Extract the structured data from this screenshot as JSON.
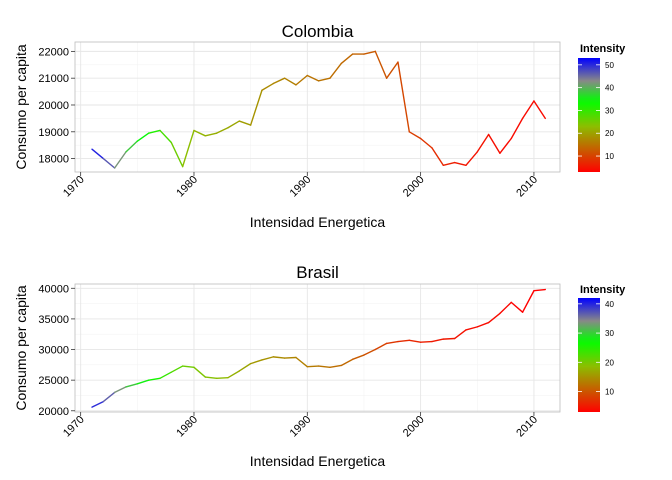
{
  "colors": {
    "panel_border": "#bdbdbd",
    "grid_major": "#e6e6e6",
    "grid_minor": "#f3f3f3",
    "gradient_high": "#0000ff",
    "gradient_mid_high": "#888888",
    "gradient_mid": "#00ff00",
    "gradient_low": "#ff0000"
  },
  "chart_data": [
    {
      "type": "line",
      "title": "Colombia",
      "xlabel": "Intensidad Energetica",
      "ylabel": "Consumo per capita",
      "xlim": [
        1969.5,
        2012.3
      ],
      "ylim": [
        17500,
        22350
      ],
      "xticks": [
        1970,
        1980,
        1990,
        2000,
        2010
      ],
      "yticks": [
        18000,
        19000,
        20000,
        21000,
        22000
      ],
      "x": [
        1971,
        1972,
        1973,
        1974,
        1975,
        1976,
        1977,
        1978,
        1979,
        1980,
        1981,
        1982,
        1983,
        1984,
        1985,
        1986,
        1987,
        1988,
        1989,
        1990,
        1991,
        1992,
        1993,
        1994,
        1995,
        1996,
        1997,
        1998,
        1999,
        2000,
        2001,
        2002,
        2003,
        2004,
        2005,
        2006,
        2007,
        2008,
        2009,
        2010,
        2011
      ],
      "y": [
        18350,
        18000,
        17650,
        18250,
        18650,
        18950,
        19050,
        18600,
        17700,
        19050,
        18850,
        18950,
        19150,
        19400,
        19250,
        20550,
        20800,
        21000,
        20750,
        21100,
        20900,
        21000,
        21550,
        21900,
        21900,
        22000,
        21000,
        21600,
        19000,
        18750,
        18400,
        17750,
        17850,
        17750,
        18250,
        18900,
        18200,
        18750,
        19500,
        20150,
        19500
      ],
      "color_values": [
        52,
        49,
        44,
        40,
        36,
        33,
        30,
        27,
        24,
        22,
        22,
        21,
        21,
        20,
        19,
        18,
        17,
        17,
        16,
        15,
        15,
        15,
        14,
        14,
        13,
        12,
        12,
        11,
        10,
        9,
        8,
        7,
        6,
        5,
        5,
        5,
        4,
        4,
        4,
        4,
        4
      ],
      "legend": {
        "title": "Intensity",
        "ticks": [
          10,
          20,
          30,
          40,
          50
        ],
        "range": [
          3,
          53
        ],
        "position": "right"
      },
      "grid": true
    },
    {
      "type": "line",
      "title": "Brasil",
      "xlabel": "Intensidad Energetica",
      "ylabel": "Consumo per capita",
      "xlim": [
        1969.5,
        2012.3
      ],
      "ylim": [
        19800,
        40700
      ],
      "xticks": [
        1970,
        1980,
        1990,
        2000,
        2010
      ],
      "yticks": [
        20000,
        25000,
        30000,
        35000,
        40000
      ],
      "x": [
        1971,
        1972,
        1973,
        1974,
        1975,
        1976,
        1977,
        1978,
        1979,
        1980,
        1981,
        1982,
        1983,
        1984,
        1985,
        1986,
        1987,
        1988,
        1989,
        1990,
        1991,
        1992,
        1993,
        1994,
        1995,
        1996,
        1997,
        1998,
        1999,
        2000,
        2001,
        2002,
        2003,
        2004,
        2005,
        2006,
        2007,
        2008,
        2009,
        2010,
        2011
      ],
      "y": [
        20600,
        21500,
        23000,
        23900,
        24400,
        25000,
        25300,
        26300,
        27300,
        27100,
        25500,
        25300,
        25400,
        26500,
        27700,
        28300,
        28800,
        28600,
        28700,
        27200,
        27300,
        27100,
        27400,
        28400,
        29100,
        30000,
        31000,
        31300,
        31500,
        31200,
        31300,
        31700,
        31800,
        33200,
        33700,
        34400,
        35900,
        37700,
        36100,
        39600,
        39800
      ],
      "color_values": [
        41,
        38,
        35,
        32,
        29,
        27,
        25,
        23,
        21,
        20,
        19,
        19,
        18,
        17,
        16,
        15,
        15,
        14,
        14,
        13,
        13,
        12,
        12,
        11,
        10,
        9,
        8,
        7,
        6,
        6,
        5,
        5,
        5,
        4,
        4,
        4,
        4,
        3,
        3,
        3,
        3
      ],
      "legend": {
        "title": "Intensity",
        "ticks": [
          10,
          20,
          30,
          40
        ],
        "range": [
          3,
          42
        ],
        "position": "right"
      },
      "grid": true
    }
  ]
}
